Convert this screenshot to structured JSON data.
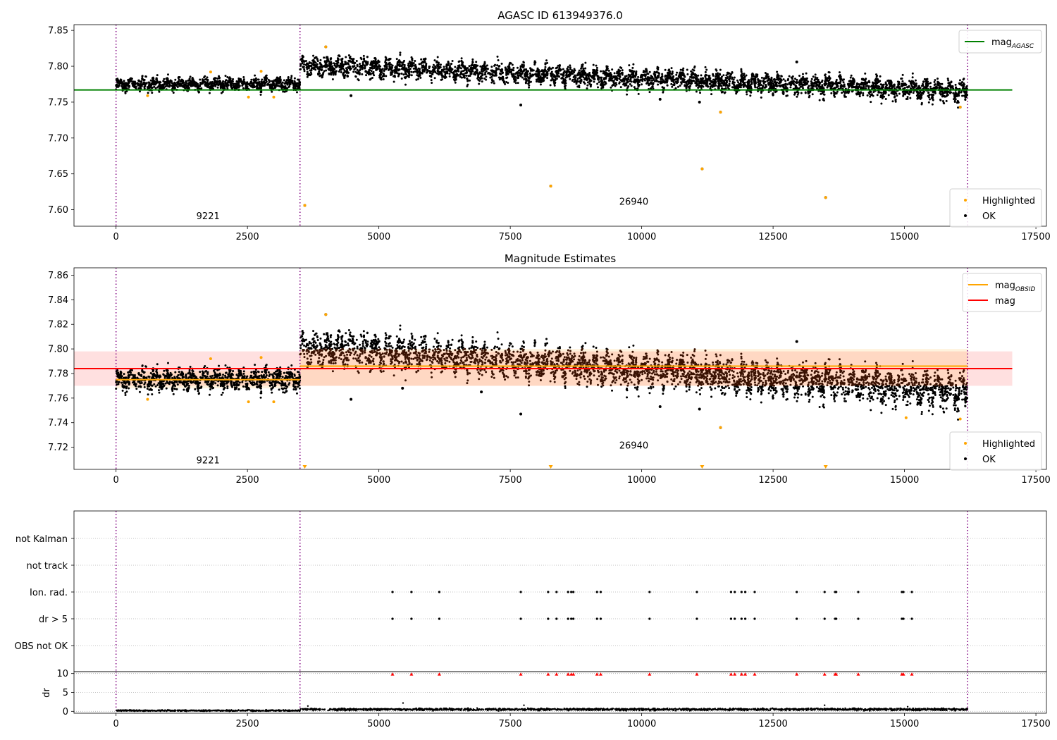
{
  "chart_data": [
    {
      "type": "scatter",
      "title": "AGASC ID 613949376.0",
      "xlim": [
        -800,
        17700
      ],
      "ylim": [
        7.577,
        7.858
      ],
      "xticks": [
        0,
        2500,
        5000,
        7500,
        10000,
        12500,
        15000,
        17500
      ],
      "yticks": [
        7.6,
        7.65,
        7.7,
        7.75,
        7.8,
        7.85
      ],
      "obs_boundaries": [
        0,
        3500,
        16200
      ],
      "obs_labels": [
        {
          "text": "9221",
          "x": 1750,
          "y": 7.587
        },
        {
          "text": "26940",
          "x": 9850,
          "y": 7.607
        }
      ],
      "reference_lines": [
        {
          "name": "mag_AGASC",
          "y": 7.767,
          "color": "#008000",
          "xrange": [
            -800,
            17050
          ]
        }
      ],
      "segments": [
        {
          "x0": 0,
          "x1": 3500,
          "mean": 7.775,
          "spread": 0.007
        },
        {
          "x0": 3500,
          "x1": 16200,
          "start": 7.802,
          "end": 7.765,
          "spread": 0.011
        }
      ],
      "series": [
        {
          "name": "Highlighted",
          "color": "#ffa500",
          "points": [
            [
              3590,
              7.606
            ],
            [
              3990,
              7.827
            ],
            [
              8270,
              7.633
            ],
            [
              11150,
              7.657
            ],
            [
              11500,
              7.736
            ],
            [
              13500,
              7.617
            ],
            [
              16060,
              7.743
            ],
            [
              600,
              7.759
            ],
            [
              1800,
              7.792
            ],
            [
              2520,
              7.757
            ],
            [
              3000,
              7.757
            ],
            [
              2760,
              7.793
            ]
          ]
        },
        {
          "name": "OK",
          "color": "#000000",
          "points": [
            [
              3590,
              7.606
            ],
            [
              3990,
              7.827
            ],
            [
              8270,
              7.633
            ],
            [
              11150,
              7.657
            ],
            [
              11500,
              7.736
            ],
            [
              13500,
              7.617
            ],
            [
              16060,
              7.743
            ],
            [
              4470,
              7.759
            ],
            [
              7700,
              7.746
            ],
            [
              12950,
              7.806
            ],
            [
              11100,
              7.75
            ],
            [
              10350,
              7.754
            ]
          ]
        }
      ],
      "legends": [
        {
          "position": "upper right",
          "entries": [
            {
              "label": "mag",
              "sub": "AGASC",
              "kind": "line",
              "color": "#008000"
            }
          ]
        },
        {
          "position": "lower right",
          "entries": [
            {
              "label": "Highlighted",
              "kind": "marker",
              "color": "#ffa500"
            },
            {
              "label": "OK",
              "kind": "marker",
              "color": "#000000"
            }
          ]
        }
      ]
    },
    {
      "type": "scatter",
      "title": "Magnitude Estimates",
      "xlim": [
        -800,
        17700
      ],
      "ylim": [
        7.702,
        7.866
      ],
      "xticks": [
        0,
        2500,
        5000,
        7500,
        10000,
        12500,
        15000,
        17500
      ],
      "yticks": [
        7.72,
        7.74,
        7.76,
        7.78,
        7.8,
        7.82,
        7.84,
        7.86
      ],
      "obs_boundaries": [
        0,
        3500,
        16200
      ],
      "obs_labels": [
        {
          "text": "9221",
          "x": 1750,
          "y": 7.707
        },
        {
          "text": "26940",
          "x": 9850,
          "y": 7.719
        }
      ],
      "reference_lines": [
        {
          "name": "mag",
          "y": 7.784,
          "color": "#ff0000",
          "xrange": [
            -800,
            17050
          ],
          "band": [
            7.77,
            7.798
          ]
        }
      ],
      "obsid_lines": [
        {
          "name": "mag_OBSID",
          "x0": 0,
          "x1": 3500,
          "y": 7.775,
          "band": [
            7.768,
            7.782
          ]
        },
        {
          "name": "mag_OBSID",
          "x0": 3500,
          "x1": 16200,
          "y": 7.786,
          "band": [
            7.77,
            7.8
          ]
        }
      ],
      "segments": [
        {
          "x0": 0,
          "x1": 3500,
          "mean": 7.775,
          "spread": 0.007
        },
        {
          "x0": 3500,
          "x1": 16200,
          "start": 7.802,
          "end": 7.765,
          "spread": 0.011
        }
      ],
      "series": [
        {
          "name": "Highlighted",
          "color": "#ffa500",
          "points": [
            [
              3990,
              7.828
            ],
            [
              11500,
              7.736
            ],
            [
              15030,
              7.744
            ],
            [
              16060,
              7.743
            ],
            [
              600,
              7.759
            ],
            [
              1800,
              7.792
            ],
            [
              2520,
              7.757
            ],
            [
              3000,
              7.757
            ],
            [
              2760,
              7.793
            ]
          ]
        },
        {
          "name": "OK",
          "color": "#000000",
          "points": [
            [
              3990,
              7.828
            ],
            [
              11500,
              7.736
            ],
            [
              4470,
              7.759
            ],
            [
              7700,
              7.747
            ],
            [
              12950,
              7.806
            ],
            [
              11100,
              7.751
            ],
            [
              10350,
              7.753
            ],
            [
              5450,
              7.768
            ],
            [
              6950,
              7.765
            ]
          ]
        }
      ],
      "clipped_markers": [
        3590,
        8270,
        11150,
        13500
      ],
      "legends": [
        {
          "position": "upper right",
          "entries": [
            {
              "label": "mag",
              "sub": "OBSID",
              "kind": "line",
              "color": "#ffa500"
            },
            {
              "label": "mag",
              "sub": "",
              "kind": "line",
              "color": "#ff0000"
            }
          ]
        },
        {
          "position": "lower right",
          "entries": [
            {
              "label": "Highlighted",
              "kind": "marker",
              "color": "#ffa500"
            },
            {
              "label": "OK",
              "kind": "marker",
              "color": "#000000"
            }
          ]
        }
      ]
    },
    {
      "type": "scatter",
      "title": "",
      "xlim": [
        -800,
        17700
      ],
      "categories": [
        "not Kalman",
        "not track",
        "Ion. rad.",
        "dr > 5",
        "OBS not OK"
      ],
      "obs_boundaries": [
        0,
        3500,
        16200
      ],
      "flag_points": {
        "Ion. rad.": [
          5260,
          5620,
          6150,
          7700,
          8220,
          8380,
          8600,
          8660,
          8700,
          9150,
          9220,
          10150,
          11050,
          11700,
          11770,
          11900,
          11970,
          12150,
          12950,
          13480,
          13680,
          13700,
          14120,
          14950,
          14980,
          15140
        ],
        "dr > 5": [
          5260,
          5620,
          6150,
          7700,
          8220,
          8380,
          8600,
          8660,
          8700,
          9150,
          9220,
          10150,
          11050,
          11700,
          11770,
          11900,
          11970,
          12150,
          12950,
          13480,
          13680,
          13700,
          14120,
          14950,
          14980,
          15140
        ]
      }
    },
    {
      "type": "scatter",
      "title": "",
      "ylabel": "dr",
      "xlim": [
        -800,
        17700
      ],
      "ylim": [
        -0.5,
        10.5
      ],
      "xticks": [
        0,
        2500,
        5000,
        7500,
        10000,
        12500,
        15000,
        17500
      ],
      "yticks": [
        0,
        5,
        10
      ],
      "obs_boundaries": [
        0,
        3500,
        16200
      ],
      "clipped_x": [
        5260,
        5620,
        6150,
        7700,
        8220,
        8380,
        8600,
        8660,
        8700,
        9150,
        9220,
        10150,
        11050,
        11700,
        11770,
        11900,
        11970,
        12150,
        12950,
        13480,
        13680,
        13700,
        14120,
        14950,
        14980,
        15140
      ],
      "segments": [
        {
          "x0": 0,
          "x1": 3500,
          "mean": 0.2,
          "spread": 0.15
        },
        {
          "x0": 3500,
          "x1": 16200,
          "mean": 0.5,
          "spread": 0.25
        }
      ]
    }
  ]
}
